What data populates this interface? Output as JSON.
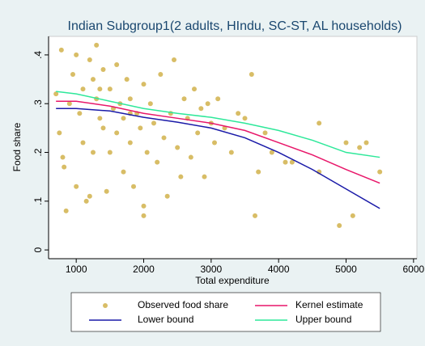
{
  "chart_data": {
    "type": "scatter",
    "title": "Indian Subgroup1(2 adults, HIndu, SC-ST, AL households)",
    "x_label": "Total expenditure",
    "y_label": "Food share",
    "xlim": [
      590,
      6050
    ],
    "ylim": [
      -0.018,
      0.438
    ],
    "xticks": [
      1000,
      2000,
      3000,
      4000,
      5000,
      6000
    ],
    "yticks": [
      0,
      {
        "value": 0.1,
        "label": ".1"
      },
      {
        "value": 0.2,
        "label": ".2"
      },
      {
        "value": 0.3,
        "label": ".3"
      },
      {
        "value": 0.4,
        "label": ".4"
      }
    ],
    "legend_position": "bottom",
    "series": [
      {
        "name": "Observed food share",
        "kind": "points",
        "color": "#d8bd66",
        "x": [
          700,
          750,
          800,
          820,
          850,
          780,
          900,
          950,
          1000,
          1050,
          1100,
          1100,
          1150,
          1200,
          1200,
          1250,
          1300,
          1300,
          1350,
          1400,
          1400,
          1450,
          1500,
          1500,
          1550,
          1600,
          1600,
          1650,
          1700,
          1700,
          1750,
          1800,
          1800,
          1850,
          1900,
          1950,
          2000,
          2000,
          2000,
          2050,
          2100,
          2150,
          2200,
          2250,
          2300,
          2350,
          2400,
          2450,
          2500,
          2550,
          2600,
          2650,
          2700,
          2750,
          2800,
          2850,
          2900,
          2950,
          3000,
          3050,
          3100,
          3200,
          3300,
          3400,
          3500,
          3600,
          3650,
          3700,
          3800,
          3900,
          4100,
          4200,
          4600,
          4600,
          4900,
          5000,
          5100,
          5200,
          5300,
          5500,
          1000,
          1250,
          1800,
          1350
        ],
        "values": [
          0.32,
          0.24,
          0.19,
          0.17,
          0.08,
          0.41,
          0.3,
          0.36,
          0.4,
          0.28,
          0.33,
          0.22,
          0.1,
          0.11,
          0.39,
          0.35,
          0.42,
          0.31,
          0.27,
          0.25,
          0.37,
          0.12,
          0.33,
          0.2,
          0.29,
          0.24,
          0.38,
          0.3,
          0.27,
          0.16,
          0.35,
          0.22,
          0.31,
          0.13,
          0.28,
          0.25,
          0.09,
          0.07,
          0.34,
          0.2,
          0.3,
          0.26,
          0.18,
          0.36,
          0.23,
          0.11,
          0.28,
          0.39,
          0.21,
          0.15,
          0.31,
          0.27,
          0.19,
          0.33,
          0.24,
          0.29,
          0.15,
          0.3,
          0.26,
          0.22,
          0.31,
          0.25,
          0.2,
          0.28,
          0.27,
          0.36,
          0.07,
          0.16,
          0.24,
          0.2,
          0.18,
          0.18,
          0.26,
          0.16,
          0.05,
          0.22,
          0.07,
          0.21,
          0.22,
          0.16,
          0.13,
          0.2,
          0.28,
          0.33
        ]
      },
      {
        "name": "Kernel estimate",
        "kind": "line",
        "color": "#e8176a",
        "x": [
          700,
          1000,
          1500,
          2000,
          2500,
          3000,
          3500,
          4000,
          4500,
          5000,
          5500
        ],
        "values": [
          0.305,
          0.305,
          0.295,
          0.28,
          0.27,
          0.26,
          0.245,
          0.22,
          0.195,
          0.165,
          0.137
        ]
      },
      {
        "name": "Lower bound",
        "kind": "line",
        "color": "#1a1aa8",
        "x": [
          700,
          1000,
          1500,
          2000,
          2500,
          3000,
          3500,
          4000,
          4500,
          5000,
          5500
        ],
        "values": [
          0.29,
          0.29,
          0.285,
          0.272,
          0.262,
          0.25,
          0.23,
          0.2,
          0.165,
          0.125,
          0.085
        ]
      },
      {
        "name": "Upper bound",
        "kind": "line",
        "color": "#2ee89a",
        "x": [
          700,
          1000,
          1500,
          2000,
          2500,
          3000,
          3500,
          4000,
          4500,
          5000,
          5500
        ],
        "values": [
          0.325,
          0.32,
          0.305,
          0.29,
          0.28,
          0.272,
          0.26,
          0.245,
          0.225,
          0.2,
          0.19
        ]
      }
    ]
  }
}
